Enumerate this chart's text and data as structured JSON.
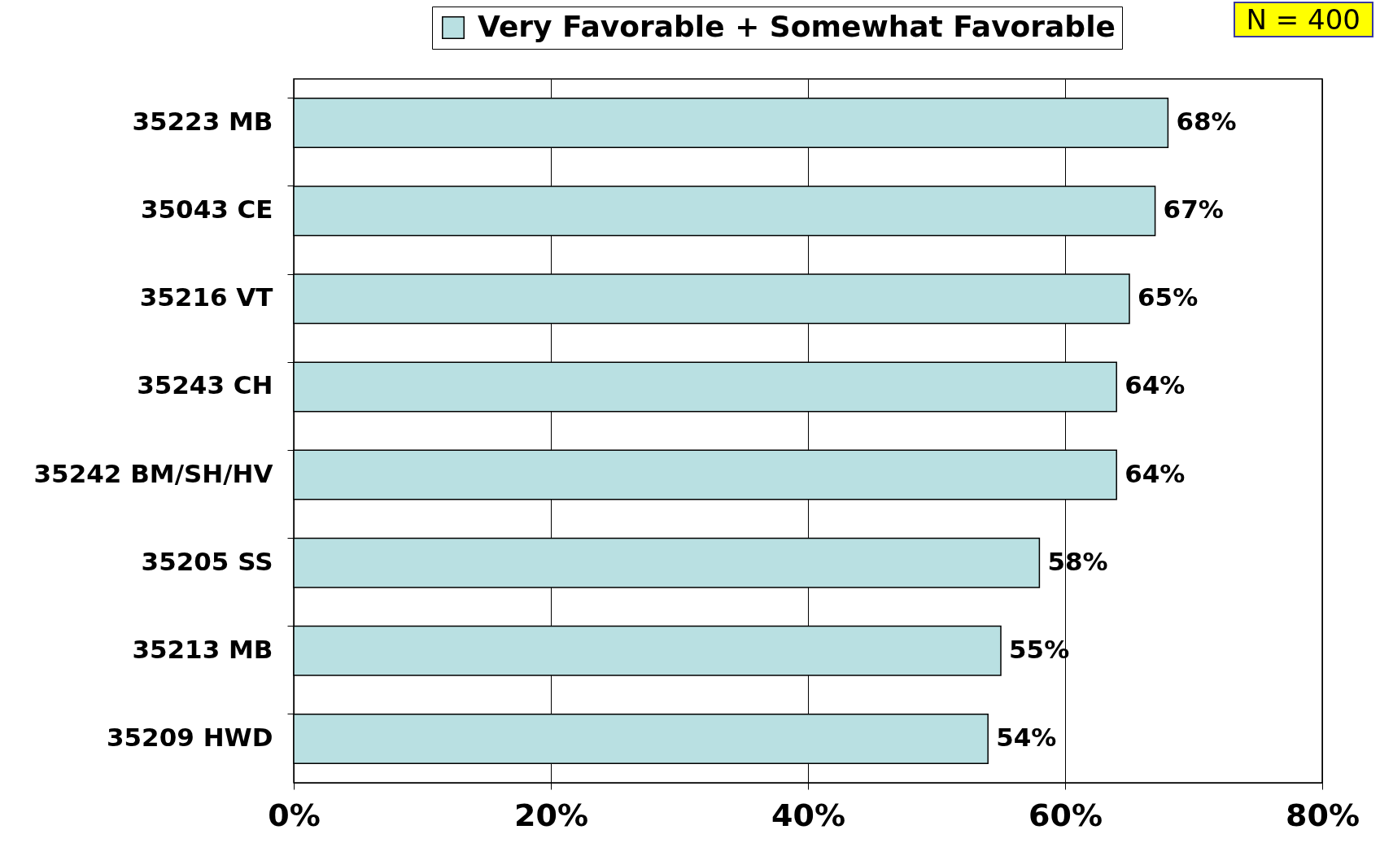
{
  "chart_data": {
    "type": "bar",
    "orientation": "horizontal",
    "categories": [
      "35223 MB",
      "35043 CE",
      "35216 VT",
      "35243 CH",
      "35242 BM/SH/HV",
      "35205 SS",
      "35213 MB",
      "35209 HWD"
    ],
    "series": [
      {
        "name": "Very Favorable + Somewhat Favorable",
        "color": "#b9e0e2",
        "values": [
          68,
          67,
          65,
          64,
          64,
          58,
          55,
          54
        ],
        "value_labels": [
          "68%",
          "67%",
          "65%",
          "64%",
          "64%",
          "58%",
          "55%",
          "54%"
        ]
      }
    ],
    "xlim": [
      0,
      80
    ],
    "xticks": [
      {
        "value": 0,
        "label": "0%"
      },
      {
        "value": 20,
        "label": "20%"
      },
      {
        "value": 40,
        "label": "40%"
      },
      {
        "value": 60,
        "label": "60%"
      },
      {
        "value": 80,
        "label": "80%"
      }
    ],
    "grid": "x",
    "legend": "top",
    "annotations": [
      "N = 400"
    ]
  }
}
